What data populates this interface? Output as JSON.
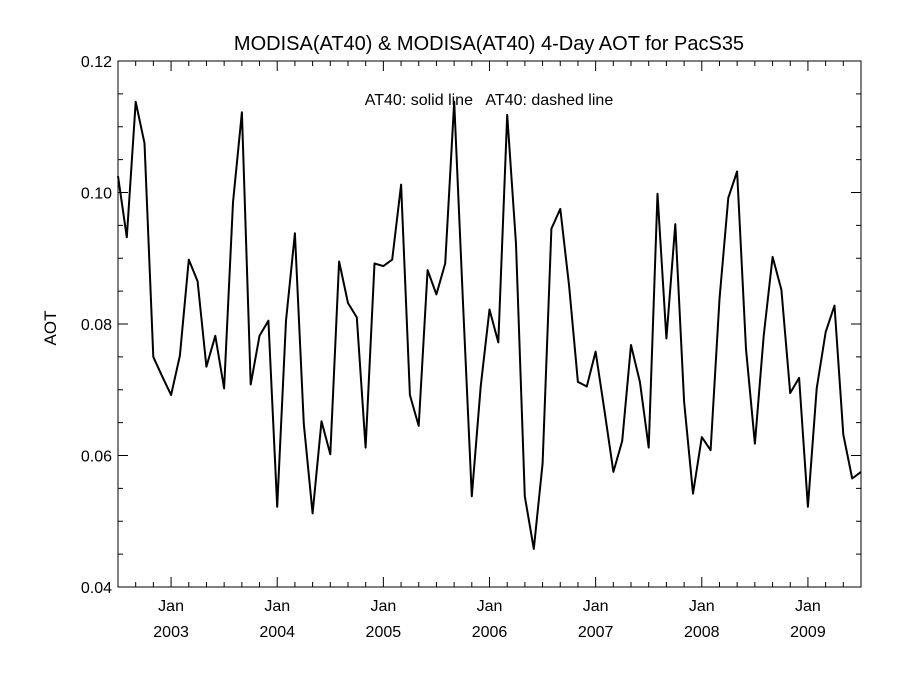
{
  "chart_data": {
    "type": "line",
    "title": "MODISA(AT40) & MODISA(AT40) 4-Day AOT for PacS35",
    "ylabel": "AOT",
    "xlabel": "",
    "ylim": [
      0.04,
      0.12
    ],
    "xlim": [
      2002.5,
      2009.5
    ],
    "annotation": "AT40: solid line   AT40: dashed line",
    "y_ticks": [
      "0.04",
      "0.06",
      "0.08",
      "0.10",
      "0.12"
    ],
    "y_tick_values": [
      0.04,
      0.06,
      0.08,
      0.1,
      0.12
    ],
    "x_ticks": [
      {
        "month": "Jan",
        "year": "2003",
        "value": 2003
      },
      {
        "month": "Jan",
        "year": "2004",
        "value": 2004
      },
      {
        "month": "Jan",
        "year": "2005",
        "value": 2005
      },
      {
        "month": "Jan",
        "year": "2006",
        "value": 2006
      },
      {
        "month": "Jan",
        "year": "2007",
        "value": 2007
      },
      {
        "month": "Jan",
        "year": "2008",
        "value": 2008
      },
      {
        "month": "Jan",
        "year": "2009",
        "value": 2009
      }
    ],
    "series": [
      {
        "style": "solid",
        "x": [
          2002.5,
          2002.583,
          2002.667,
          2002.75,
          2002.833,
          2002.917,
          2003.0,
          2003.083,
          2003.167,
          2003.25,
          2003.333,
          2003.417,
          2003.5,
          2003.583,
          2003.667,
          2003.75,
          2003.833,
          2003.917,
          2004.0,
          2004.083,
          2004.167,
          2004.25,
          2004.333,
          2004.417,
          2004.5,
          2004.583,
          2004.667,
          2004.75,
          2004.833,
          2004.917,
          2005.0,
          2005.083,
          2005.167,
          2005.25,
          2005.333,
          2005.417,
          2005.5,
          2005.583,
          2005.667,
          2005.75,
          2005.833,
          2005.917,
          2006.0,
          2006.083,
          2006.167,
          2006.25,
          2006.333,
          2006.417,
          2006.5,
          2006.583,
          2006.667,
          2006.75,
          2006.833,
          2006.917,
          2007.0,
          2007.083,
          2007.167,
          2007.25,
          2007.333,
          2007.417,
          2007.5,
          2007.583,
          2007.667,
          2007.75,
          2007.833,
          2007.917,
          2008.0,
          2008.083,
          2008.167,
          2008.25,
          2008.333,
          2008.417,
          2008.5,
          2008.583,
          2008.667,
          2008.75,
          2008.833,
          2008.917,
          2009.0,
          2009.083,
          2009.167,
          2009.25,
          2009.333,
          2009.417,
          2009.5
        ],
        "y": [
          0.1025,
          0.0932,
          0.1138,
          0.1075,
          0.075,
          0.072,
          0.0692,
          0.0752,
          0.0898,
          0.0865,
          0.0735,
          0.0782,
          0.0702,
          0.0985,
          0.1122,
          0.0708,
          0.0782,
          0.0805,
          0.0522,
          0.0805,
          0.0938,
          0.0648,
          0.0512,
          0.0652,
          0.0602,
          0.0895,
          0.0832,
          0.081,
          0.0612,
          0.0892,
          0.0888,
          0.0898,
          0.1012,
          0.0692,
          0.0645,
          0.0882,
          0.0845,
          0.0892,
          0.1138,
          0.0832,
          0.0538,
          0.0705,
          0.0822,
          0.0772,
          0.1118,
          0.0922,
          0.0538,
          0.0458,
          0.0588,
          0.0945,
          0.0975,
          0.0858,
          0.0712,
          0.0705,
          0.0758,
          0.0668,
          0.0575,
          0.0622,
          0.0768,
          0.0712,
          0.0612,
          0.0998,
          0.0778,
          0.0952,
          0.0682,
          0.0542,
          0.0628,
          0.0608,
          0.0838,
          0.0992,
          0.1032,
          0.0762,
          0.0618,
          0.0782,
          0.0902,
          0.0852,
          0.0695,
          0.0718,
          0.0522,
          0.0702,
          0.0788,
          0.0828,
          0.0632,
          0.0565,
          0.0575
        ]
      }
    ],
    "grid": false,
    "legend": "none"
  }
}
